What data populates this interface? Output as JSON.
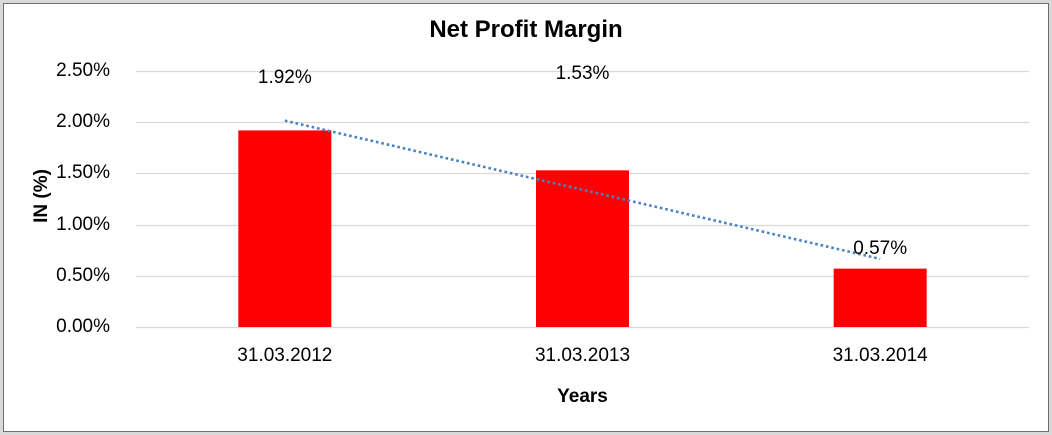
{
  "chart_data": {
    "type": "bar",
    "title": "Net Profit Margin",
    "xlabel": "Years",
    "ylabel": "IN (%)",
    "categories": [
      "31.03.2012",
      "31.03.2013",
      "31.03.2014"
    ],
    "values": [
      1.92,
      1.53,
      0.57
    ],
    "data_labels": [
      "1.92%",
      "1.53%",
      "0.57%"
    ],
    "y_ticks": [
      "0.00%",
      "0.50%",
      "1.00%",
      "1.50%",
      "2.00%",
      "2.50%"
    ],
    "y_tick_values": [
      0.0,
      0.5,
      1.0,
      1.5,
      2.0,
      2.5
    ],
    "ylim": [
      0,
      2.5
    ],
    "grid": true,
    "legend": "none",
    "bar_color": "#ff0000",
    "gridline_color": "#d9d9d9",
    "trendline": {
      "type": "linear",
      "style": "dotted",
      "color": "#4a80c4"
    }
  }
}
